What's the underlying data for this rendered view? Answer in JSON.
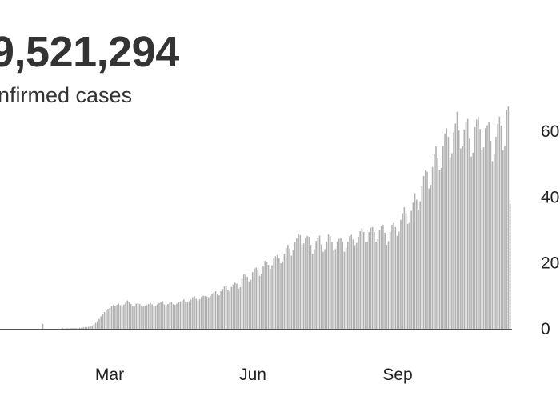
{
  "headline": {
    "value": "9,521,294",
    "label": "nfirmed cases"
  },
  "chart_data": {
    "type": "bar",
    "title": "",
    "xlabel": "",
    "ylabel": "",
    "x_tick_labels": [
      "Mar",
      "Jun",
      "Sep"
    ],
    "y_tick_labels": [
      "0",
      "20",
      "40",
      "60"
    ],
    "ylim": [
      0,
      68
    ],
    "grid": false,
    "bar_color": "#b0b0b0",
    "axis_color": "#555555",
    "daily_values_thousands": [
      0,
      0,
      0,
      0,
      0,
      0,
      0,
      0,
      0,
      0,
      0,
      0,
      0,
      0,
      0,
      0,
      0,
      0,
      0,
      0,
      0,
      0,
      0,
      1.5,
      0,
      0,
      0,
      0,
      0,
      0,
      0,
      0,
      0,
      0,
      0.3,
      0.1,
      0.1,
      0.2,
      0.1,
      0.2,
      0.2,
      0.2,
      0.2,
      0.3,
      0.3,
      0.3,
      0.4,
      0.5,
      0.5,
      0.6,
      0.8,
      1,
      1.3,
      1.8,
      2.3,
      3,
      3.8,
      4.6,
      5.1,
      5.6,
      6,
      6.3,
      6.9,
      7.2,
      6.9,
      7.3,
      7.6,
      7.2,
      6.7,
      7.4,
      7.9,
      8.6,
      8,
      7.5,
      6.9,
      7,
      7.6,
      7.8,
      7.5,
      7,
      6.8,
      6.9,
      7.2,
      7.5,
      7.9,
      7.4,
      7,
      6.9,
      7.4,
      7.8,
      8.1,
      8.4,
      7.4,
      7.2,
      7.5,
      7.9,
      8.1,
      7.5,
      7.3,
      7.6,
      8,
      8.3,
      8.6,
      8.9,
      8.3,
      8.2,
      8.4,
      8.9,
      9.6,
      9.9,
      9.1,
      8.6,
      9,
      9.7,
      10,
      10,
      9.8,
      9.6,
      10,
      10.7,
      11,
      11.4,
      10.4,
      10.2,
      11.4,
      12.1,
      12.9,
      13.1,
      11.8,
      11.4,
      12.7,
      13.4,
      14,
      13.7,
      12.2,
      12.6,
      15.2,
      16.5,
      16.4,
      15.8,
      14.4,
      14.9,
      17.2,
      18.3,
      18.6,
      17.7,
      16.1,
      16.6,
      19.2,
      20.6,
      20.3,
      19.4,
      18.2,
      19.3,
      21.4,
      22,
      22.4,
      21.4,
      19.9,
      20.4,
      22.8,
      24.6,
      25.5,
      24.4,
      22.2,
      23.8,
      26.3,
      27.5,
      28.8,
      28.4,
      25.5,
      25.9,
      27.5,
      28.2,
      27.9,
      25.5,
      22.8,
      24.2,
      26.7,
      27.7,
      28.3,
      25.6,
      23.4,
      24.2,
      26.5,
      28.6,
      28.1,
      26.4,
      23.7,
      24.2,
      26.5,
      27.3,
      27.5,
      26.4,
      23.4,
      24.5,
      26.4,
      28.1,
      28.5,
      27.1,
      25.4,
      26.1,
      27.9,
      29.6,
      30.6,
      29.4,
      26.3,
      26.4,
      29.4,
      30.7,
      30.9,
      29.4,
      26.5,
      27.2,
      29.9,
      31.2,
      31.6,
      29.2,
      25.5,
      26.6,
      29.4,
      31.6,
      32.1,
      30.9,
      28.2,
      29.5,
      33.1,
      35.1,
      36.9,
      35.1,
      31.9,
      32.2,
      35.8,
      38.3,
      41.2,
      39.2,
      36.2,
      38.7,
      43.2,
      46.4,
      48.1,
      47.7,
      42.6,
      43.7,
      49.1,
      52.9,
      55.4,
      51.9,
      48.2,
      48.8,
      55.5,
      59.3,
      60.9,
      58.3,
      52.1,
      53.3,
      59.6,
      62.3,
      65.9,
      60.2,
      54.8,
      55.4,
      60.5,
      62.9,
      63.7,
      57.7,
      52.3,
      53.5,
      61.2,
      63.5,
      64.4,
      60.7,
      54.2,
      55.1,
      60.9,
      61.8,
      62.9,
      57.1,
      50.9,
      53.1,
      58.3,
      62.2,
      64.4,
      61.7,
      54.2,
      55.5,
      66.5,
      67.5,
      38
    ]
  }
}
